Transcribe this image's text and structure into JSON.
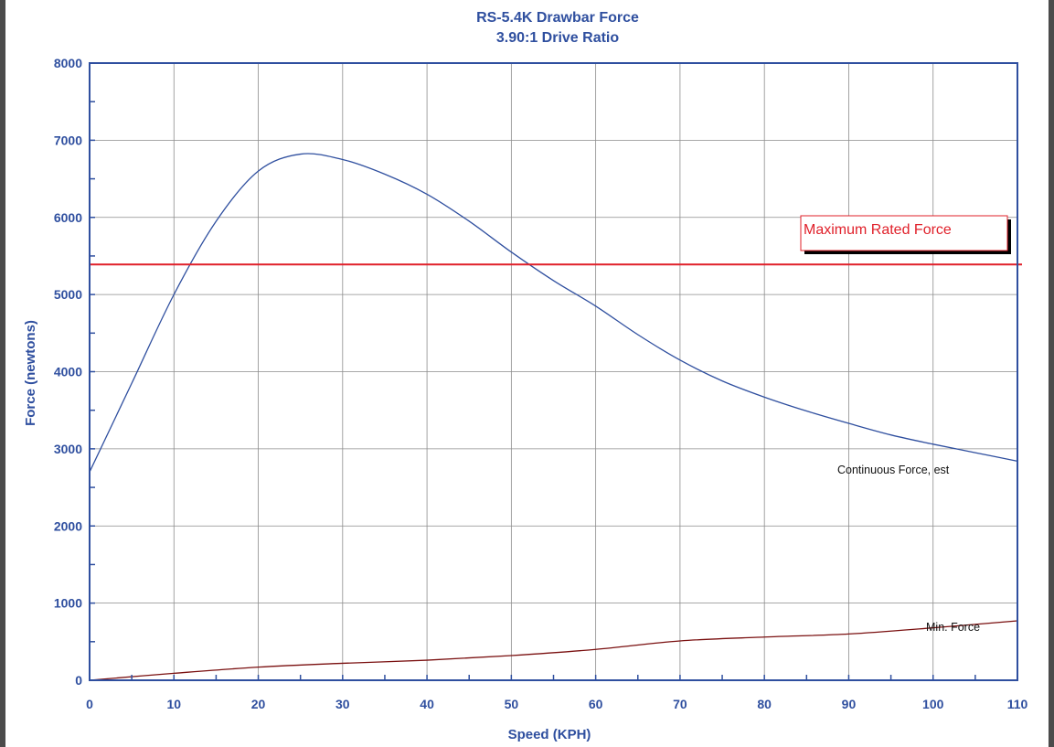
{
  "chart_data": {
    "type": "line",
    "title": "RS-5.4K Drawbar Force",
    "subtitle": "3.90:1 Drive Ratio",
    "xlabel": "Speed  (KPH)",
    "ylabel": "Force  (newtons)",
    "xlim": [
      0,
      110
    ],
    "ylim": [
      0,
      8000
    ],
    "x_ticks": [
      0,
      10,
      20,
      30,
      40,
      50,
      60,
      70,
      80,
      90,
      100,
      110
    ],
    "y_ticks": [
      0,
      1000,
      2000,
      3000,
      4000,
      5000,
      6000,
      7000,
      8000
    ],
    "grid": true,
    "series": [
      {
        "name": "Continuous Force, est",
        "color": "#2f4f9f",
        "x": [
          0,
          5,
          10,
          15,
          20,
          25,
          30,
          35,
          40,
          45,
          50,
          55,
          60,
          65,
          70,
          75,
          80,
          85,
          90,
          95,
          100,
          105,
          110
        ],
        "y": [
          2700,
          3850,
          5000,
          5950,
          6600,
          6820,
          6750,
          6560,
          6300,
          5950,
          5550,
          5180,
          4850,
          4480,
          4150,
          3880,
          3670,
          3490,
          3330,
          3180,
          3060,
          2950,
          2840
        ]
      },
      {
        "name": "Min. Force",
        "color": "#7a1010",
        "x": [
          0,
          10,
          20,
          30,
          40,
          50,
          60,
          70,
          80,
          90,
          100,
          110
        ],
        "y": [
          0,
          90,
          170,
          220,
          260,
          320,
          400,
          510,
          560,
          600,
          680,
          770
        ]
      },
      {
        "name": "Maximum Rated Force",
        "color": "#e0202a",
        "x": [
          0,
          110
        ],
        "y": [
          5390,
          5390
        ]
      }
    ]
  },
  "colors": {
    "axis": "#2f4f9f",
    "grid": "#8c8c8c",
    "max_rated": "#e0202a",
    "min_force": "#7a1010",
    "continuous": "#2f4f9f"
  }
}
